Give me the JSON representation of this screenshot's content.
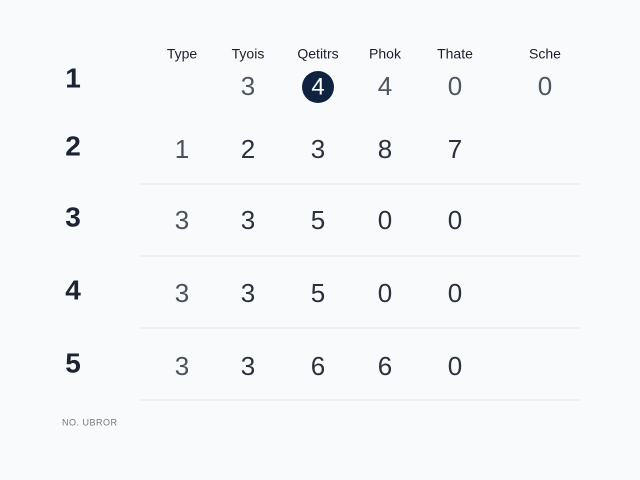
{
  "table": {
    "header": [
      "Type",
      "Tyois",
      "Qetitrs",
      "Phok",
      "Thate",
      "Sche"
    ],
    "rows": [
      {
        "label": "1",
        "cells": [
          null,
          "3",
          {
            "text": "4",
            "highlighted": true
          },
          "4",
          "0",
          "0"
        ]
      },
      {
        "label": "2",
        "cells": [
          "1",
          "2",
          "3",
          "8",
          "7",
          null
        ]
      },
      {
        "label": "3",
        "cells": [
          "3",
          "3",
          "5",
          "0",
          "0",
          null
        ]
      },
      {
        "label": "4",
        "cells": [
          "3",
          "3",
          "5",
          "0",
          "0",
          null
        ]
      },
      {
        "label": "5",
        "cells": [
          "3",
          "3",
          "6",
          "6",
          "0",
          null
        ]
      }
    ]
  },
  "footer": "NO. UBROR"
}
